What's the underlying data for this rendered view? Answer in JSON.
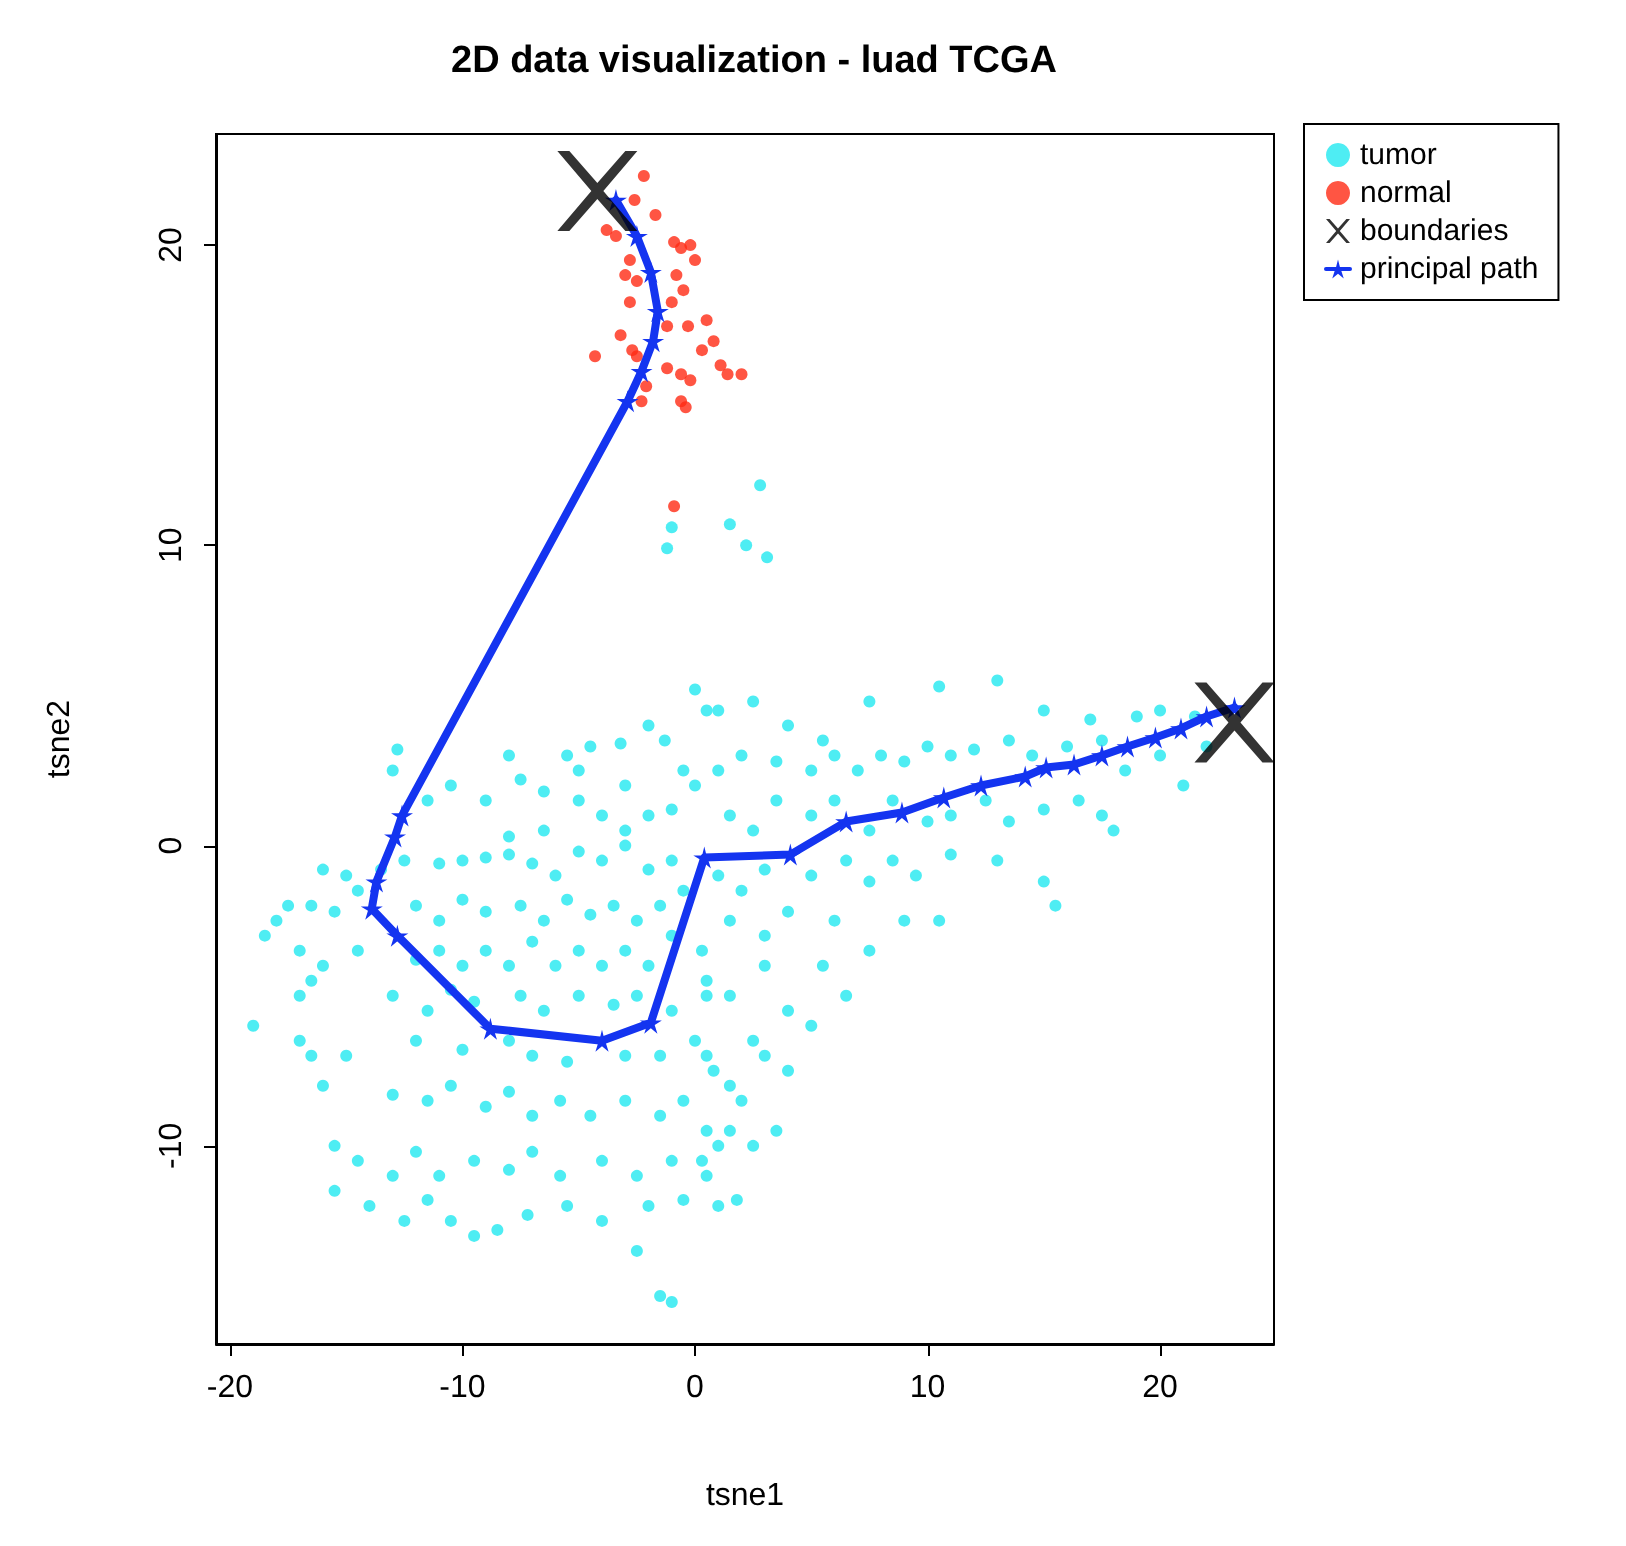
{
  "chart_data": {
    "type": "scatter",
    "title": "2D data visualization - luad TCGA",
    "xlabel": "tsne1",
    "ylabel": "tsne2",
    "xlim": [
      -20.6,
      24.9
    ],
    "ylim": [
      -16.6,
      23.7
    ],
    "xticks": [
      -20,
      -10,
      0,
      10,
      20
    ],
    "yticks": [
      -10,
      0,
      10,
      20
    ],
    "grid": false,
    "legend": "top right",
    "series": [
      {
        "name": "tumor",
        "color": "#22e8f0",
        "marker": "circle",
        "x": [
          -1,
          -1.2,
          1.5,
          2.2,
          3.1,
          2.8,
          -13,
          -12.8,
          -10.5,
          -8,
          -5.5,
          -5,
          -4.5,
          -3.2,
          -2,
          -1.3,
          0,
          0.5,
          -0.5,
          -3,
          -6.5,
          -9,
          -11.5,
          -8,
          -6.5,
          -5,
          -4,
          -3,
          -2,
          -1,
          0,
          -7.5,
          -16,
          -15,
          -14.5,
          -13.5,
          -12.5,
          -11,
          -10,
          -9,
          -8,
          -7,
          -6,
          -5,
          -4,
          -3,
          -2,
          -1,
          -18,
          -17.5,
          -16.5,
          -15.5,
          -12,
          -11,
          -10,
          -9,
          -7.5,
          -6.5,
          -5.5,
          -4.5,
          -3.5,
          -2.5,
          -1.5,
          -0.5,
          -18.5,
          -17,
          -16,
          -14.5,
          -12,
          -11,
          -10,
          -9,
          -8,
          -7,
          -6,
          -5,
          -4,
          -3,
          -2,
          -1,
          0.3,
          -16.5,
          -17,
          -13,
          -11.5,
          -10.5,
          -9.5,
          -7.5,
          -6.5,
          -5,
          -3.5,
          -2.5,
          -1,
          0.5,
          -19,
          -17,
          -16.5,
          -15,
          -12,
          -10,
          -8,
          -7,
          -5.5,
          -3,
          -1.5,
          0,
          0.8,
          -16,
          -13,
          -11.5,
          -10.5,
          -9,
          -8,
          -7,
          -5.8,
          -4.5,
          -3,
          -1.5,
          -0.5,
          -15.5,
          -14.5,
          -13,
          -12,
          -11,
          -9.5,
          -8,
          -7,
          -5.8,
          -4,
          -2.5,
          -1,
          0.5,
          1,
          -15.5,
          -14,
          -12.5,
          -11.5,
          -10.5,
          -8.5,
          -7.2,
          -5.5,
          -4,
          -2,
          -0.5,
          1,
          1.8,
          -9.5,
          -2.5,
          -1.5,
          -1,
          1,
          2.5,
          4,
          5.5,
          7.5,
          10.5,
          13,
          15,
          17,
          19,
          20,
          21.5,
          22,
          1,
          2,
          3.5,
          5,
          6,
          7,
          8,
          9,
          10,
          11,
          12,
          13.5,
          14.5,
          16,
          17.5,
          18.5,
          20,
          21,
          1.5,
          2.5,
          3.5,
          5,
          6,
          7.5,
          8.5,
          10,
          11,
          12.5,
          13.5,
          15,
          16.5,
          17.5,
          18,
          1,
          2,
          3,
          5,
          6.5,
          7.5,
          8.5,
          9.5,
          11,
          13,
          15,
          15.5,
          1.5,
          3,
          4,
          6,
          7.5,
          9,
          10.5,
          5.5,
          0.5,
          1.5,
          3,
          4,
          5,
          6.5,
          2.5,
          0.5,
          1.5,
          3,
          2,
          4,
          0.5,
          1.5,
          2.5,
          3.5,
          0.3
        ],
        "values": [
          10.6,
          9.9,
          10.7,
          10,
          9.6,
          12,
          2.5,
          3.2,
          2,
          3,
          3,
          2.5,
          3.3,
          3.4,
          4,
          3.5,
          5.2,
          4.5,
          2.5,
          2,
          1.8,
          1.5,
          1.5,
          0.3,
          0.5,
          1.5,
          1,
          0.5,
          1,
          1.2,
          2,
          2.2,
          -0.8,
          -1,
          -1.5,
          -0.8,
          -0.5,
          -0.6,
          -0.5,
          -0.4,
          -0.3,
          -0.6,
          -1,
          -0.2,
          -0.5,
          0,
          -0.8,
          -0.5,
          -2.5,
          -2,
          -2,
          -2.2,
          -2,
          -2.5,
          -1.8,
          -2.2,
          -2,
          -2.5,
          -1.8,
          -2.3,
          -2,
          -2.5,
          -2,
          -1.5,
          -3,
          -3.5,
          -4,
          -3.5,
          -3.8,
          -3.5,
          -4,
          -3.5,
          -4,
          -3.2,
          -4,
          -3.5,
          -4,
          -3.5,
          -4,
          -3,
          -3.5,
          -4.5,
          -5,
          -5,
          -5.5,
          -4.8,
          -5.2,
          -5,
          -5.5,
          -5,
          -5.3,
          -5,
          -5.5,
          -5,
          -6,
          -6.5,
          -7,
          -7,
          -6.5,
          -6.8,
          -6.5,
          -7,
          -7.2,
          -7,
          -7,
          -6.5,
          -7.5,
          -8,
          -8.3,
          -8.5,
          -8,
          -8.7,
          -8.2,
          -9,
          -8.5,
          -9,
          -8.5,
          -9,
          -8.5,
          -10,
          -10.5,
          -11,
          -10.2,
          -11,
          -10.5,
          -10.8,
          -10.2,
          -11,
          -10.5,
          -11,
          -10.5,
          -11,
          -10,
          -11.5,
          -12,
          -12.5,
          -11.8,
          -12.5,
          -12.8,
          -12.3,
          -12,
          -12.5,
          -12,
          -11.8,
          -12,
          -11.8,
          -13,
          -13.5,
          -15,
          -15.2,
          4.5,
          4.8,
          4,
          3.5,
          4.8,
          5.3,
          5.5,
          4.5,
          4.2,
          4.3,
          4.5,
          4.3,
          3.3,
          2.5,
          3,
          2.8,
          2.5,
          3,
          2.5,
          3,
          2.8,
          3.3,
          3,
          3.2,
          3.5,
          3,
          3.3,
          3.5,
          2.5,
          3,
          2,
          1,
          0.5,
          1.5,
          1,
          1.5,
          0.5,
          1.5,
          0.8,
          1,
          1.5,
          0.8,
          1.2,
          1.5,
          1,
          0.5,
          -1,
          -1.5,
          -0.8,
          -1,
          -0.5,
          -1.2,
          -0.5,
          -1,
          -0.3,
          -0.5,
          -1.2,
          -2,
          -2.5,
          -3,
          -2.2,
          -2.5,
          -3.5,
          -2.5,
          -2.5,
          -4,
          -4.5,
          -5,
          -4,
          -5.5,
          -6,
          -5,
          -6.5,
          -7,
          -8,
          -7,
          -8.5,
          -7.5,
          -9.5,
          -9.5,
          -10,
          -9.5,
          -10.5
        ]
      },
      {
        "name": "normal",
        "color": "#ff2a14",
        "marker": "circle",
        "x": [
          -2.2,
          -3.4,
          -1.7,
          -0.9,
          -0.6,
          -0.2,
          -2.8,
          -2.5,
          -0.8,
          -2.8,
          -1,
          -1.2,
          -0.3,
          0.5,
          0.8,
          -4.3,
          -2.5,
          -1.2,
          -0.6,
          1.4,
          2,
          -2.1,
          -0.6,
          -0.4,
          -2.3,
          -0.9,
          -3.8,
          -3,
          0,
          -0.5,
          0.3,
          -2.7,
          1.1,
          -0.2,
          -3.2,
          -2.6
        ],
        "values": [
          22.3,
          20.3,
          21,
          20.1,
          19.9,
          20,
          19.5,
          18.8,
          19,
          18.1,
          18.1,
          17.3,
          17.3,
          17.5,
          16.8,
          16.3,
          16.3,
          15.9,
          15.7,
          15.7,
          15.7,
          15.3,
          14.8,
          14.6,
          14.8,
          11.3,
          20.5,
          19,
          19.5,
          18.5,
          16.5,
          16.5,
          16,
          15.5,
          17,
          21.5
        ]
      },
      {
        "name": "boundaries",
        "type": "scatter",
        "color": "#000000",
        "marker": "cross",
        "x": [
          -4.2,
          23.2
        ],
        "values": [
          21.8,
          4.1
        ]
      },
      {
        "name": "principal path",
        "type": "line",
        "color": "#1434f0",
        "marker": "star",
        "x": [
          -3.4,
          -2.5,
          -1.9,
          -1.6,
          -1.8,
          -2.3,
          -2.9,
          -12.6,
          -12.9,
          -13.7,
          -13.9,
          -12.8,
          -8.8,
          -4,
          -1.9,
          0.4,
          4.1,
          6.5,
          8.9,
          10.7,
          12.3,
          14.2,
          15.1,
          16.3,
          17.5,
          18.6,
          19.8,
          20.9,
          22,
          23.2
        ],
        "values": [
          21.5,
          20.3,
          19.1,
          17.8,
          16.8,
          15.8,
          14.8,
          1,
          0.3,
          -1.2,
          -2.1,
          -3,
          -6.1,
          -6.5,
          -5.9,
          -0.4,
          -0.3,
          0.8,
          1.1,
          1.6,
          2,
          2.3,
          2.6,
          2.7,
          3,
          3.3,
          3.6,
          3.9,
          4.3,
          4.6
        ]
      }
    ]
  }
}
